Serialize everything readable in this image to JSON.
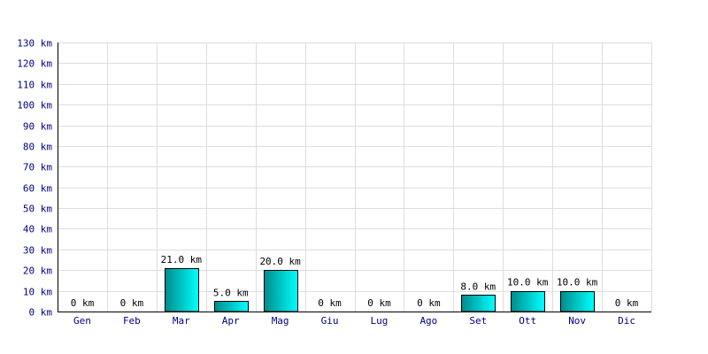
{
  "chart_data": {
    "type": "bar",
    "categories": [
      "Gen",
      "Feb",
      "Mar",
      "Apr",
      "Mag",
      "Giu",
      "Lug",
      "Ago",
      "Set",
      "Ott",
      "Nov",
      "Dic"
    ],
    "values": [
      0,
      0,
      21,
      5,
      20,
      0,
      0,
      0,
      8,
      10,
      10,
      0
    ],
    "data_labels": [
      "0 km",
      "0 km",
      "21.0 km",
      "5.0 km",
      "20.0 km",
      "0 km",
      "0 km",
      "0 km",
      "8.0 km",
      "10.0 km",
      "10.0 km",
      "0 km"
    ],
    "ylim": [
      0,
      130
    ],
    "y_ticks": [
      0,
      10,
      20,
      30,
      40,
      50,
      60,
      70,
      80,
      90,
      100,
      110,
      120,
      130
    ],
    "y_unit": "km",
    "title": "",
    "xlabel": "",
    "ylabel": "",
    "grid": true,
    "colors": {
      "bar_dark": "#008b8b",
      "bar_light": "#00ffff",
      "axis_text": "#000080",
      "grid": "#dddddd"
    }
  }
}
